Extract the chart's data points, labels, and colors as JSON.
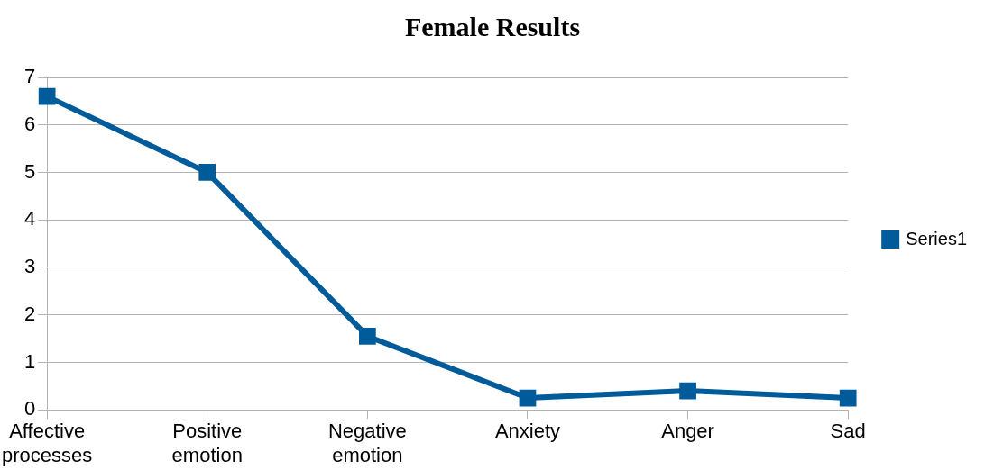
{
  "chart_data": {
    "type": "line",
    "title": "Female Results",
    "categories": [
      "Affective processes",
      "Positive emotion",
      "Negative emotion",
      "Anxiety",
      "Anger",
      "Sad"
    ],
    "series": [
      {
        "name": "Series1",
        "color": "#005b9a",
        "values": [
          6.6,
          5.0,
          1.55,
          0.25,
          0.4,
          0.25
        ]
      }
    ],
    "ylim": [
      0,
      7
    ],
    "yticks": [
      0,
      1,
      2,
      3,
      4,
      5,
      6,
      7
    ],
    "grid": "y",
    "legend": "right",
    "marker": "square",
    "line_style": "solid"
  }
}
